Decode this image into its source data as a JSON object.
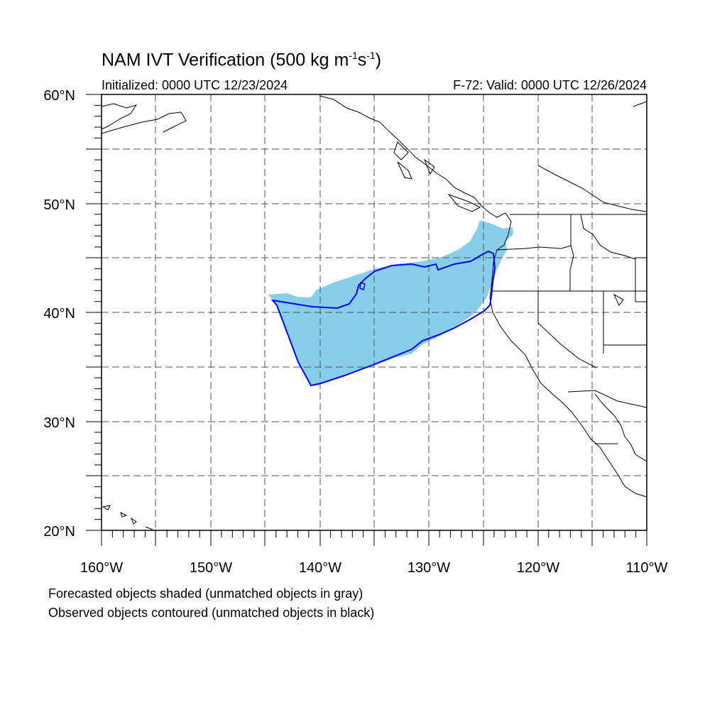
{
  "title": {
    "main": "NAM IVT Verification (500 kg m",
    "exp1": "-1",
    "mid": "s",
    "exp2": "-1",
    "end": ")"
  },
  "initialized": "Initialized: 0000 UTC 12/23/2024",
  "valid": "F-72: Valid: 0000 UTC 12/26/2024",
  "lat_labels": [
    "60°N",
    "50°N",
    "40°N",
    "30°N",
    "20°N"
  ],
  "lon_labels": [
    "160°W",
    "150°W",
    "140°W",
    "130°W",
    "120°W",
    "110°W"
  ],
  "legend": {
    "line1": "Forecasted objects shaded (unmatched objects in gray)",
    "line2": "Observed objects contoured (unmatched objects in black)"
  },
  "colors": {
    "forecast_fill": "#87ceeb",
    "observed_contour": "#0000ff",
    "coastline": "#000000",
    "grid": "#555555"
  }
}
